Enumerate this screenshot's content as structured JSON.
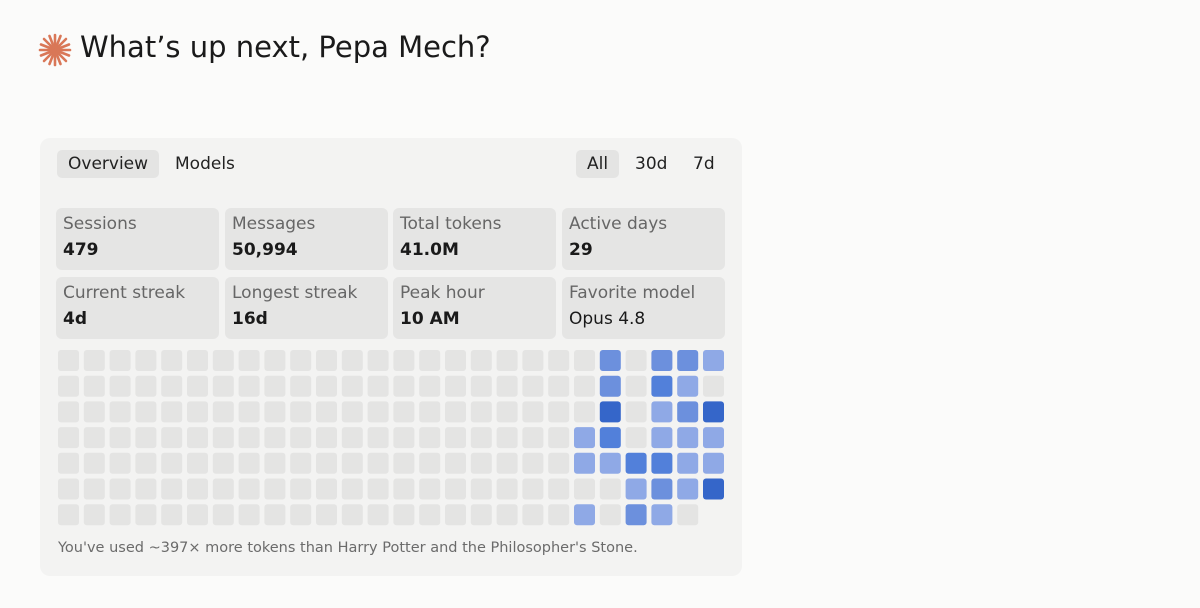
{
  "header": {
    "title": "What’s up next, Pepa Mech?"
  },
  "tabs": [
    "Overview",
    "Models"
  ],
  "ranges": [
    "All",
    "30d",
    "7d"
  ],
  "stats": [
    {
      "label": "Sessions",
      "value": "479"
    },
    {
      "label": "Messages",
      "value": "50,994"
    },
    {
      "label": "Total tokens",
      "value": "41.0M"
    },
    {
      "label": "Active days",
      "value": "29"
    },
    {
      "label": "Current streak",
      "value": "4d"
    },
    {
      "label": "Longest streak",
      "value": "16d"
    },
    {
      "label": "Peak hour",
      "value": "10 AM"
    },
    {
      "label": "Favorite model",
      "value": "Opus 4.8"
    }
  ],
  "heatmap": {
    "colors": [
      "#e4e4e3",
      "#8fa9e6",
      "#6c90dd",
      "#5280da",
      "#3566c9"
    ],
    "rows": [
      [
        0,
        0,
        0,
        0,
        0,
        0,
        0,
        0,
        0,
        0,
        0,
        0,
        0,
        0,
        0,
        0,
        0,
        0,
        0,
        0,
        0,
        2,
        0,
        2,
        2,
        1
      ],
      [
        0,
        0,
        0,
        0,
        0,
        0,
        0,
        0,
        0,
        0,
        0,
        0,
        0,
        0,
        0,
        0,
        0,
        0,
        0,
        0,
        0,
        2,
        0,
        3,
        1,
        0
      ],
      [
        0,
        0,
        0,
        0,
        0,
        0,
        0,
        0,
        0,
        0,
        0,
        0,
        0,
        0,
        0,
        0,
        0,
        0,
        0,
        0,
        0,
        4,
        0,
        1,
        2,
        4
      ],
      [
        0,
        0,
        0,
        0,
        0,
        0,
        0,
        0,
        0,
        0,
        0,
        0,
        0,
        0,
        0,
        0,
        0,
        0,
        0,
        0,
        1,
        3,
        0,
        1,
        1,
        1
      ],
      [
        0,
        0,
        0,
        0,
        0,
        0,
        0,
        0,
        0,
        0,
        0,
        0,
        0,
        0,
        0,
        0,
        0,
        0,
        0,
        0,
        1,
        1,
        3,
        3,
        1,
        1
      ],
      [
        0,
        0,
        0,
        0,
        0,
        0,
        0,
        0,
        0,
        0,
        0,
        0,
        0,
        0,
        0,
        0,
        0,
        0,
        0,
        0,
        0,
        0,
        1,
        2,
        1,
        4
      ],
      [
        0,
        0,
        0,
        0,
        0,
        0,
        0,
        0,
        0,
        0,
        0,
        0,
        0,
        0,
        0,
        0,
        0,
        0,
        0,
        0,
        1,
        0,
        2,
        1,
        0,
        null
      ]
    ]
  },
  "footnote": "You've used ~397× more tokens than Harry Potter and the Philosopher's Stone."
}
